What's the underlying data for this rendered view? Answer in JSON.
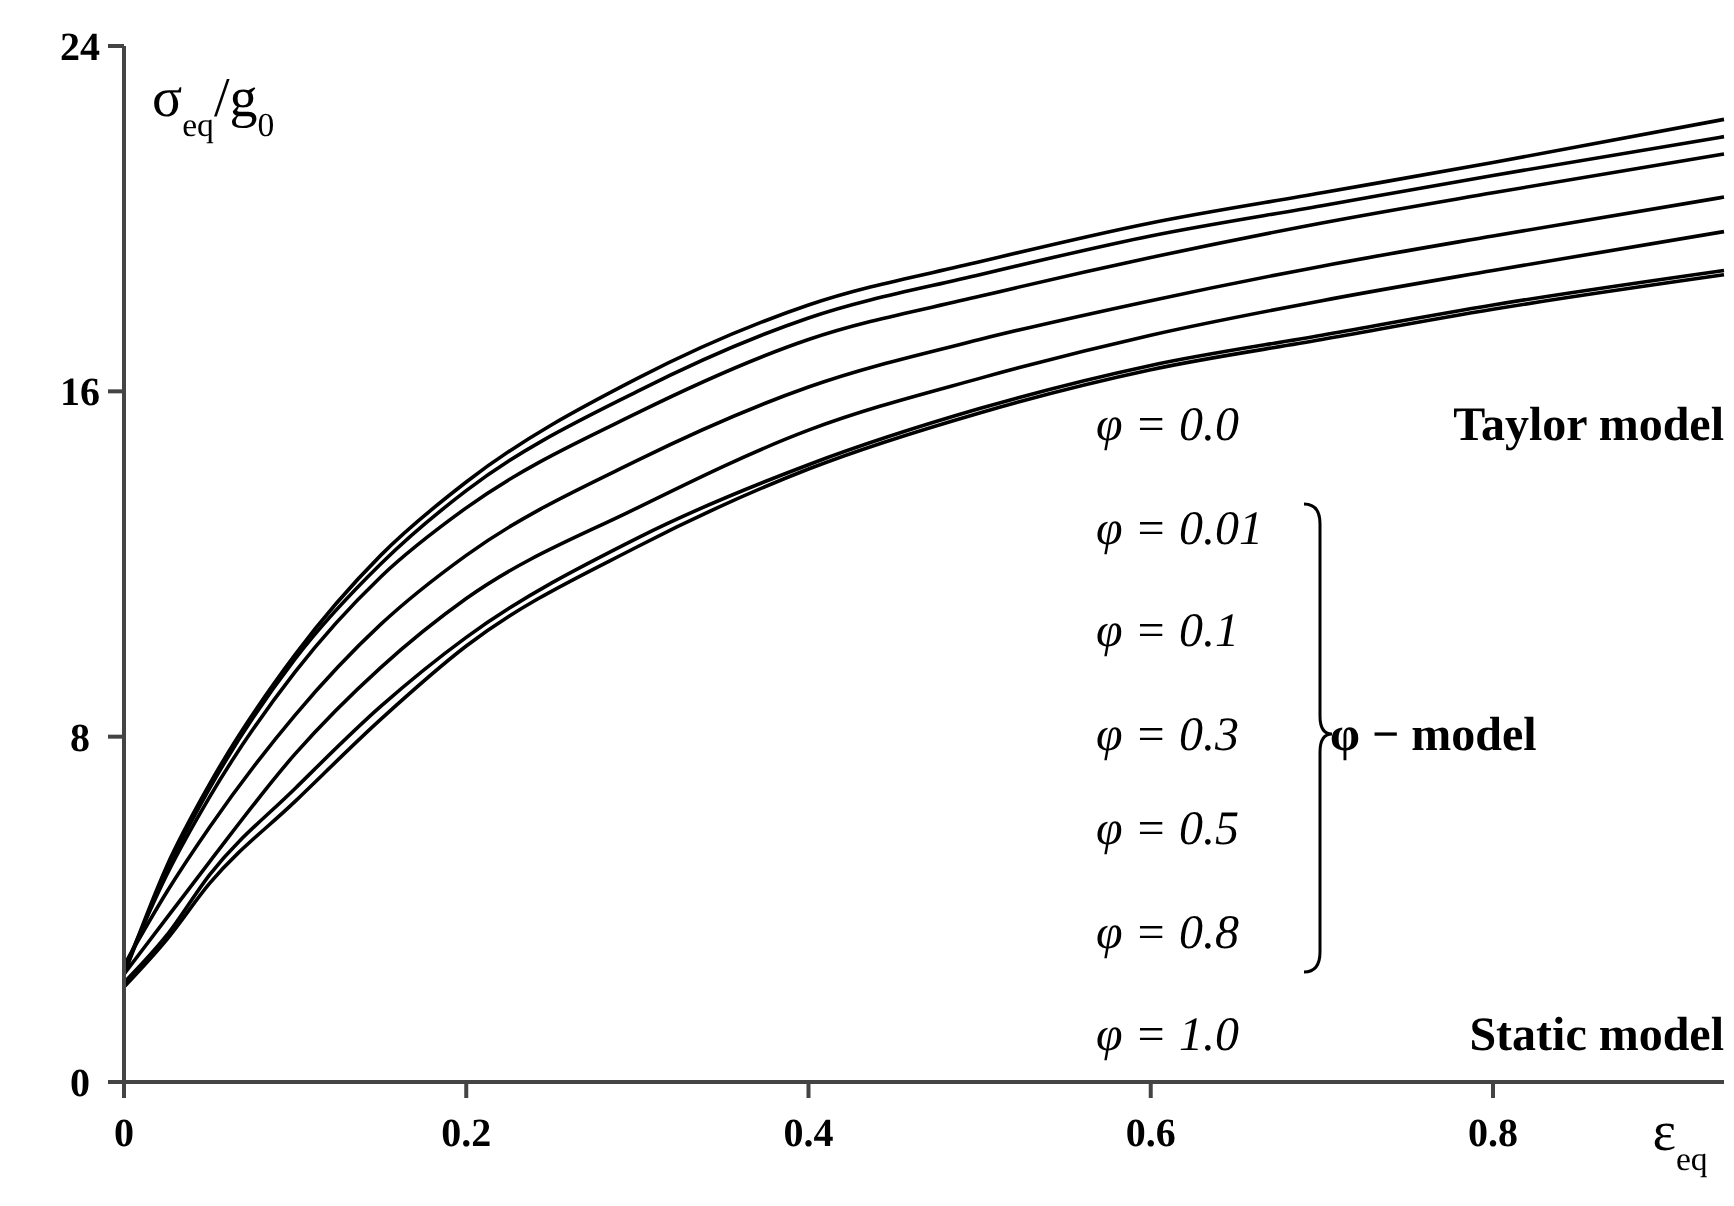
{
  "chart_data": {
    "type": "line",
    "xlabel": "ε$_{eq}$",
    "ylabel": "σ$_{eq}$/g$_{0}$",
    "x": [
      0,
      0.025,
      0.05,
      0.1,
      0.15,
      0.2,
      0.3,
      0.4,
      0.5,
      0.6,
      0.7,
      0.8,
      0.935
    ],
    "series": [
      {
        "color": "#000000",
        "values": [
          2.5,
          5.0,
          6.9,
          9.9,
          12.2,
          13.9,
          16.3,
          18.0,
          19.0,
          19.9,
          20.6,
          21.3,
          22.3
        ]
      },
      {
        "color": "#000000",
        "values": [
          2.5,
          4.9,
          6.8,
          9.8,
          12.0,
          13.7,
          16.0,
          17.7,
          18.7,
          19.6,
          20.3,
          21.0,
          21.9
        ]
      },
      {
        "color": "#000000",
        "values": [
          2.6,
          4.8,
          6.6,
          9.5,
          11.7,
          13.3,
          15.5,
          17.2,
          18.2,
          19.1,
          19.9,
          20.6,
          21.5
        ]
      },
      {
        "color": "#000000",
        "values": [
          2.7,
          4.4,
          5.9,
          8.5,
          10.6,
          12.2,
          14.4,
          16.1,
          17.2,
          18.1,
          18.9,
          19.6,
          20.5
        ]
      },
      {
        "color": "#000000",
        "values": [
          2.5,
          3.8,
          5.1,
          7.6,
          9.6,
          11.2,
          13.3,
          15.1,
          16.3,
          17.3,
          18.1,
          18.8,
          19.7
        ]
      },
      {
        "color": "#000000",
        "values": [
          2.3,
          3.4,
          4.8,
          6.8,
          8.7,
          10.3,
          12.6,
          14.3,
          15.6,
          16.6,
          17.3,
          18.0,
          18.8
        ]
      },
      {
        "color": "#000000",
        "values": [
          2.2,
          3.3,
          4.6,
          6.5,
          8.4,
          10.1,
          12.4,
          14.2,
          15.5,
          16.5,
          17.2,
          17.9,
          18.7
        ]
      }
    ],
    "xlim": [
      0,
      0.935
    ],
    "xticks": [
      0,
      0.2,
      0.4,
      0.6,
      0.8
    ],
    "ylim": [
      0,
      24
    ],
    "yticks": [
      0,
      8,
      16,
      24
    ],
    "grid": false,
    "marker": "none",
    "line_style": "solid",
    "annotations": [
      "φ = 0.0",
      "Taylor model",
      "φ = 0.01",
      "φ = 0.1",
      "φ = 0.3",
      "φ = 0.5",
      "φ = 0.8",
      "φ − model",
      "φ = 1.0",
      "Static model"
    ]
  }
}
